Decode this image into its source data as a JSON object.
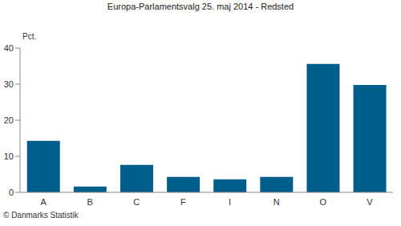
{
  "chart_data": {
    "type": "bar",
    "title": "Europa-Parlamentsvalg 25. maj 2014 - Redsted",
    "ylabel": "Pct.",
    "source": "© Danmarks Statistik",
    "categories": [
      "A",
      "B",
      "C",
      "F",
      "I",
      "N",
      "O",
      "V"
    ],
    "values": [
      14.3,
      1.6,
      7.6,
      4.3,
      3.6,
      4.3,
      35.6,
      29.8
    ],
    "color": "#005e8c",
    "ylim": [
      0,
      40
    ],
    "yticks": [
      0,
      10,
      20,
      30,
      40
    ],
    "grid": false
  }
}
